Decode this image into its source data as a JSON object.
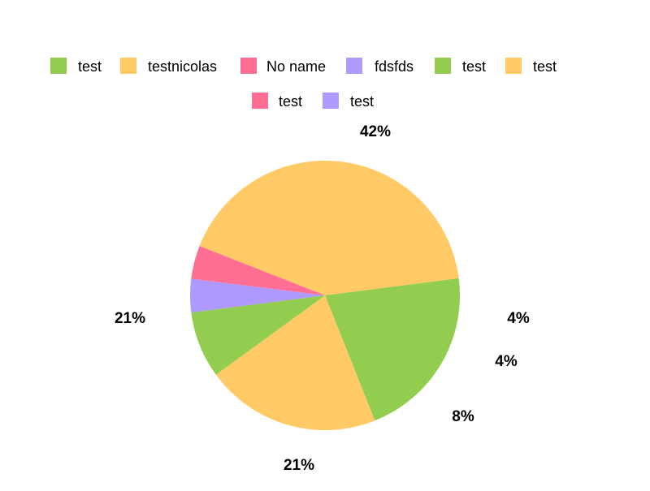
{
  "chart_data": {
    "type": "pie",
    "title": "",
    "legend_placement": "top",
    "series": [
      {
        "name": "test",
        "value": 21,
        "color": "#93cd4f"
      },
      {
        "name": "testnicolas",
        "value": 42,
        "color": "#ffc966"
      },
      {
        "name": "No name",
        "value": 4,
        "color": "#ff6f93"
      },
      {
        "name": "fdsfds",
        "value": 4,
        "color": "#ae99ff"
      },
      {
        "name": "test",
        "value": 8,
        "color": "#93cd4f"
      },
      {
        "name": "test",
        "value": 21,
        "color": "#ffc966"
      },
      {
        "name": "test",
        "value": 0,
        "color": "#ff6f93"
      },
      {
        "name": "test",
        "value": 0,
        "color": "#ae99ff"
      }
    ],
    "data_labels": [
      "42%",
      "21%",
      "21%",
      "8%",
      "4%",
      "4%"
    ]
  }
}
